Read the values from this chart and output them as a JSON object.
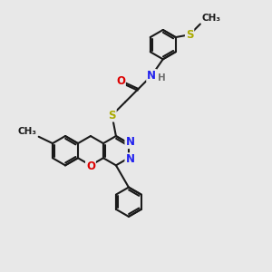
{
  "bg_color": "#e8e8e8",
  "bond_color": "#1a1a1a",
  "bond_lw": 1.5,
  "atom_colors": {
    "N": "#2222ee",
    "O": "#dd0000",
    "S": "#aaaa00",
    "H": "#707070",
    "C": "#1a1a1a"
  },
  "font_size": 8.5
}
